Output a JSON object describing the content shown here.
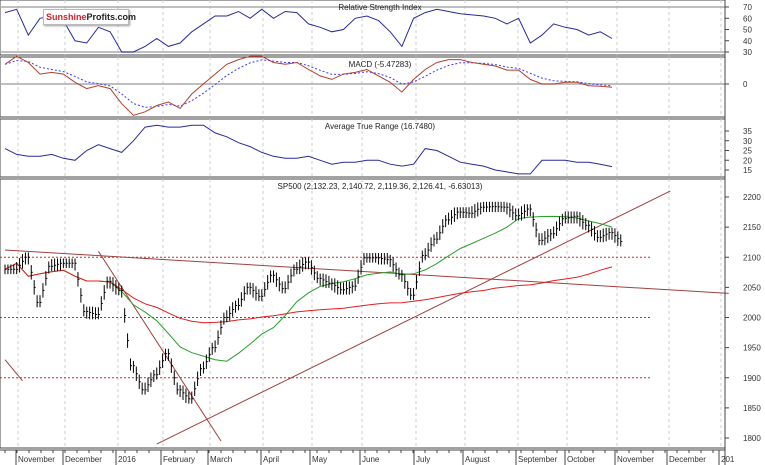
{
  "logo": {
    "part1": "Sunshine",
    "part2": "Profits.com"
  },
  "colors": {
    "price": "#000000",
    "rsi": "#2a2a9a",
    "macd": "#b04030",
    "signal": "#3a3aff",
    "atr": "#2a2a9a",
    "ma_short": "#2aa02a",
    "ma_long": "#e02020",
    "trendline": "#a04040",
    "support": "#c03030"
  },
  "chart_data": [
    {
      "type": "line",
      "title": "Relative Strength Index",
      "ylim": [
        25,
        75
      ],
      "yticks": [
        "70",
        "60",
        "50",
        "40",
        "30"
      ],
      "ytick_values": [
        70,
        60,
        50,
        40,
        30
      ],
      "reference_lines": [
        70,
        30
      ],
      "values": [
        65,
        68,
        45,
        60,
        62,
        58,
        40,
        38,
        52,
        48,
        30,
        30,
        35,
        42,
        35,
        38,
        48,
        55,
        62,
        62,
        66,
        60,
        68,
        60,
        66,
        65,
        55,
        52,
        48,
        50,
        60,
        62,
        58,
        48,
        35,
        60,
        65,
        68,
        66,
        64,
        63,
        62,
        60,
        55,
        60,
        38,
        45,
        55,
        52,
        50,
        45,
        48,
        42
      ]
    },
    {
      "type": "line",
      "title": "MACD (-5.47283)",
      "yticks": [
        "0"
      ],
      "ytick_values": [
        0
      ],
      "values": [
        34,
        48,
        37,
        17,
        20,
        17,
        3,
        -8,
        -3,
        -8,
        -34,
        -54,
        -48,
        -37,
        -31,
        -42,
        -17,
        0,
        17,
        34,
        42,
        48,
        48,
        37,
        34,
        37,
        25,
        14,
        8,
        17,
        20,
        25,
        14,
        3,
        -14,
        8,
        25,
        37,
        42,
        42,
        37,
        34,
        31,
        24,
        24,
        8,
        0,
        0,
        3,
        3,
        -3,
        -4,
        -5.47
      ]
    },
    {
      "type": "line",
      "title": "Average True Range (16.7480)",
      "ylim": [
        10,
        40
      ],
      "yticks": [
        "35",
        "30",
        "25",
        "20",
        "15"
      ],
      "ytick_values": [
        35,
        30,
        25,
        20,
        15
      ],
      "values": [
        26,
        23,
        22,
        22,
        23,
        21,
        20,
        25,
        28,
        26,
        24,
        30,
        37,
        38,
        37,
        37,
        38,
        38,
        34,
        32,
        29,
        27,
        24,
        22,
        21,
        21,
        22,
        20,
        18,
        19,
        19,
        20,
        20,
        18,
        17,
        18,
        26,
        25,
        22,
        19,
        18,
        17,
        15,
        14,
        13,
        13,
        20,
        20,
        20,
        19,
        19,
        18,
        16.75
      ]
    },
    {
      "type": "line",
      "title": "SP500 (2,132.23, 2,140.72, 2,119.36, 2,126.41, -6.63013)",
      "ylim": [
        1780,
        2230
      ],
      "yticks": [
        "2200",
        "2150",
        "2100",
        "2050",
        "2000",
        "1950",
        "1900",
        "1850",
        "1800"
      ],
      "ytick_values": [
        2200,
        2150,
        2100,
        2050,
        2000,
        1950,
        1900,
        1850,
        1800
      ],
      "support_levels": [
        2100,
        2000,
        1900
      ],
      "trendlines": [
        {
          "from": [
            0,
            2112
          ],
          "to": [
            62,
            2040
          ]
        },
        {
          "from": [
            13,
            1790
          ],
          "to": [
            57,
            2210
          ]
        },
        {
          "from": [
            8,
            2110
          ],
          "to": [
            18.5,
            1795
          ]
        },
        {
          "from": [
            0,
            1930
          ],
          "to": [
            1.5,
            1895
          ]
        }
      ],
      "moving_averages": [
        {
          "name": "short",
          "period": 10
        },
        {
          "name": "long",
          "period": 40
        }
      ],
      "closes": [
        2080,
        2100,
        2025,
        2085,
        2090,
        2090,
        2010,
        2005,
        2060,
        2045,
        1920,
        1880,
        1905,
        1940,
        1880,
        1865,
        1915,
        1950,
        2000,
        2020,
        2050,
        2035,
        2070,
        2048,
        2080,
        2092,
        2065,
        2057,
        2046,
        2052,
        2099,
        2099,
        2096,
        2071,
        2037,
        2103,
        2130,
        2162,
        2175,
        2173,
        2183,
        2184,
        2183,
        2169,
        2180,
        2128,
        2139,
        2164,
        2168,
        2153,
        2133,
        2141,
        2126
      ]
    }
  ],
  "xaxis": {
    "labels": [
      "November",
      "December",
      "2016",
      "February",
      "March",
      "April",
      "May",
      "June",
      "July",
      "August",
      "September",
      "October",
      "November",
      "December",
      "201"
    ]
  }
}
